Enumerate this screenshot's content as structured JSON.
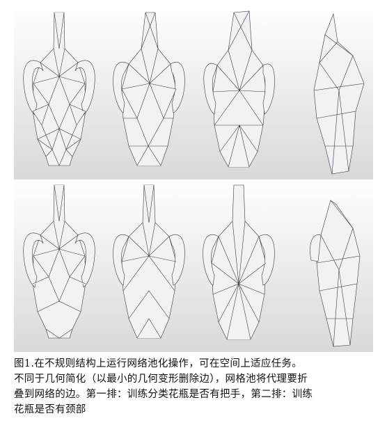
{
  "figure": {
    "rows": [
      {
        "panels": [
          "vase-original",
          "vase-pooled-1",
          "vase-pooled-2",
          "vase-pooled-3"
        ]
      },
      {
        "panels": [
          "vase-original",
          "vase-pooled-1",
          "vase-pooled-2",
          "vase-pooled-3"
        ]
      }
    ],
    "colors": {
      "mesh_fill": "#f3f1f3",
      "mesh_edge": "#3b3340",
      "shadow": "#d8d8d8"
    }
  },
  "caption": {
    "line1": "图1.在不规则结构上运行网络池化操作，可在空间上适应任务。",
    "line2": "不同于几何简化（以最小的几何变形删除边），网格池将代理要折",
    "line3": "叠到网络的边。第一排：训练分类花瓶是否有把手，第二排：训练",
    "line4": "花瓶是否有颈部"
  }
}
